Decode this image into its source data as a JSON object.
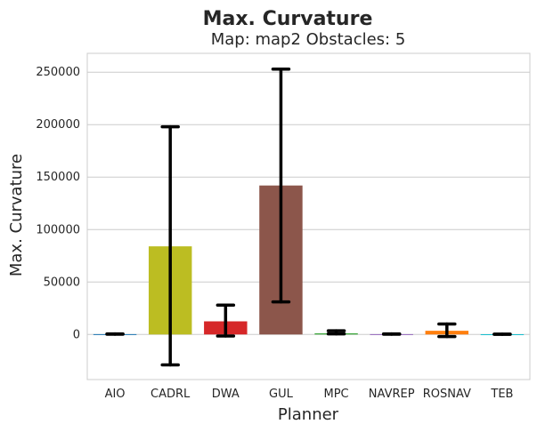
{
  "chart_data": {
    "type": "bar",
    "title": "Max. Curvature",
    "subtitle": "Map: map2 Obstacles: 5",
    "xlabel": "Planner",
    "ylabel": "Max. Curvature",
    "categories": [
      "AIO",
      "CADRL",
      "DWA",
      "GUL",
      "MPC",
      "NAVREP",
      "ROSNAV",
      "TEB"
    ],
    "values": [
      300,
      84000,
      12500,
      142000,
      1000,
      300,
      3500,
      200
    ],
    "error_low": [
      200,
      -29000,
      -1500,
      31000,
      500,
      200,
      -2000,
      100
    ],
    "error_high": [
      500,
      198000,
      28000,
      253000,
      3500,
      500,
      10000,
      300
    ],
    "colors": [
      "#1f77b4",
      "#bcbd22",
      "#d62728",
      "#8c564b",
      "#2ca02c",
      "#9467bd",
      "#ff7f0e",
      "#17becf"
    ],
    "yticks": [
      0,
      50000,
      100000,
      150000,
      200000,
      250000
    ],
    "ytick_labels": [
      "0",
      "50000",
      "100000",
      "150000",
      "200000",
      "250000"
    ],
    "ylim": [
      -43000,
      268000
    ],
    "grid": true,
    "legend": "none"
  }
}
